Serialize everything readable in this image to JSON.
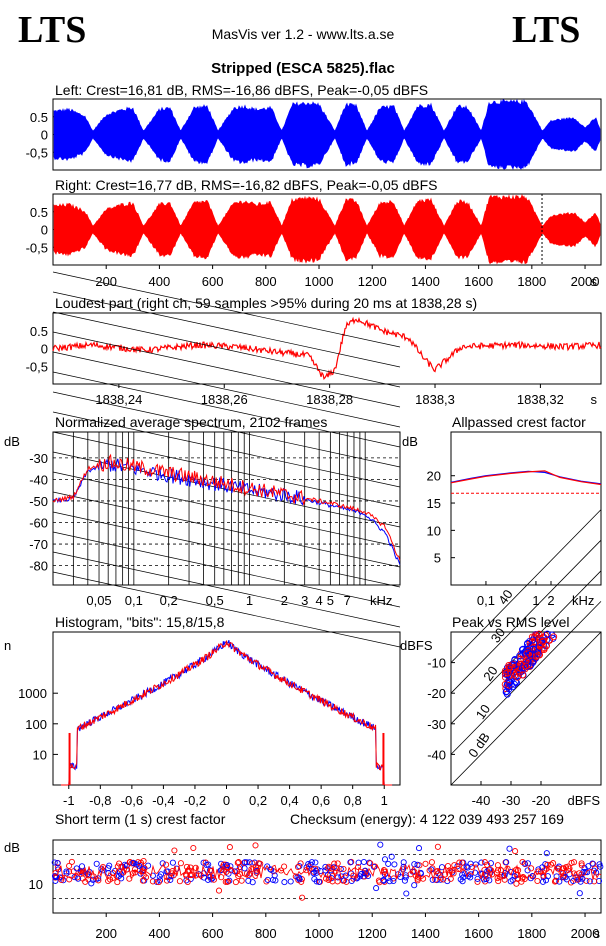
{
  "header": {
    "logo_left": "LTS",
    "logo_right": "LTS",
    "app_line": "MasVis ver 1.2 - www.lts.a.se",
    "file_title": "Stripped (ESCA 5825).flac"
  },
  "colors": {
    "left": "#0000ff",
    "right": "#ff0000",
    "grid": "#000000"
  },
  "chart_data": [
    {
      "id": "left",
      "type": "area",
      "title": "Left: Crest=16,81 dB, RMS=-16,86 dBFS, Peak=-0,05 dBFS",
      "yticks": [
        "0.5",
        "0",
        "-0,5"
      ],
      "ylim": [
        -1,
        1
      ],
      "xlim": [
        0,
        2060
      ],
      "envelope_x": [
        0,
        60,
        120,
        150,
        200,
        260,
        300,
        340,
        400,
        440,
        480,
        530,
        580,
        620,
        680,
        720,
        760,
        820,
        860,
        900,
        960,
        1000,
        1060,
        1100,
        1140,
        1180,
        1230,
        1280,
        1320,
        1370,
        1420,
        1470,
        1520,
        1560,
        1610,
        1640,
        1700,
        1780,
        1840,
        1870,
        1900,
        1960,
        2000,
        2040,
        2060
      ],
      "envelope_amp": [
        0.7,
        0.75,
        0.55,
        0.1,
        0.6,
        0.75,
        0.8,
        0.1,
        0.75,
        0.8,
        0.1,
        0.8,
        0.85,
        0.1,
        0.8,
        0.85,
        0.75,
        0.8,
        0.1,
        0.9,
        0.95,
        0.9,
        0.1,
        0.9,
        0.85,
        0.1,
        0.8,
        0.85,
        0.1,
        0.85,
        0.9,
        0.1,
        0.85,
        0.8,
        0.1,
        0.98,
        0.98,
        0.98,
        0.1,
        0.4,
        0.45,
        0.5,
        0.2,
        0.5,
        0.1
      ]
    },
    {
      "id": "right",
      "type": "area",
      "title": "Right: Crest=16,77 dB, RMS=-16,82 dBFS, Peak=-0,05 dBFS",
      "yticks": [
        "0.5",
        "0",
        "-0,5"
      ],
      "ylim": [
        -1,
        1
      ],
      "xlim": [
        0,
        2060
      ],
      "xticks": [
        "200",
        "400",
        "600",
        "800",
        "1000",
        "1200",
        "1400",
        "1600",
        "1800",
        "2000"
      ],
      "xunit": "s",
      "envelope_x": [
        0,
        60,
        120,
        150,
        200,
        260,
        300,
        340,
        400,
        440,
        480,
        530,
        580,
        620,
        680,
        720,
        760,
        820,
        860,
        900,
        960,
        1000,
        1060,
        1100,
        1140,
        1180,
        1230,
        1280,
        1320,
        1370,
        1420,
        1470,
        1520,
        1560,
        1610,
        1640,
        1700,
        1780,
        1840,
        1870,
        1900,
        1960,
        2000,
        2040,
        2060
      ],
      "envelope_amp": [
        0.7,
        0.75,
        0.55,
        0.1,
        0.6,
        0.75,
        0.8,
        0.1,
        0.75,
        0.8,
        0.1,
        0.8,
        0.85,
        0.1,
        0.8,
        0.85,
        0.75,
        0.8,
        0.1,
        0.9,
        0.95,
        0.9,
        0.1,
        0.9,
        0.85,
        0.1,
        0.8,
        0.85,
        0.1,
        0.85,
        0.9,
        0.1,
        0.85,
        0.8,
        0.1,
        0.98,
        0.98,
        0.98,
        0.1,
        0.4,
        0.45,
        0.5,
        0.2,
        0.5,
        0.1
      ]
    },
    {
      "id": "loudest",
      "type": "line",
      "title": "Loudest part (right ch, 59 samples >95% during 20 ms at 1838,28 s)",
      "yticks": [
        "0.5",
        "0",
        "-0,5"
      ],
      "ylim": [
        -1,
        1
      ],
      "xlim": [
        1838.2275,
        1838.3315
      ],
      "xticks": [
        "1838,24",
        "1838,26",
        "1838,28",
        "1838,3",
        "1838,32"
      ],
      "xunit": "s",
      "x": [
        1838.2275,
        1838.235,
        1838.245,
        1838.255,
        1838.262,
        1838.27,
        1838.276,
        1838.279,
        1838.281,
        1838.283,
        1838.285,
        1838.29,
        1838.295,
        1838.298,
        1838.3,
        1838.305,
        1838.315,
        1838.325,
        1838.3315
      ],
      "y": [
        0.0,
        0.1,
        -0.05,
        0.1,
        0.05,
        -0.1,
        -0.2,
        -0.85,
        -0.6,
        0.6,
        0.85,
        0.5,
        0.3,
        -0.3,
        -0.6,
        0.05,
        0.1,
        0.05,
        0.1
      ]
    },
    {
      "id": "spectrum",
      "type": "line",
      "title": "Normalized average spectrum, 2102 frames",
      "yunit": "dB",
      "yticks": [
        "-30",
        "-40",
        "-50",
        "-60",
        "-70",
        "-80"
      ],
      "xticks": [
        "0,05",
        "0,1",
        "0,2",
        "0,5",
        "1",
        "2",
        "3",
        "4",
        "5",
        "7"
      ],
      "xunit": "kHz",
      "xscale": "log",
      "xlim": [
        0.02,
        20
      ],
      "ylim": [
        -89,
        -18
      ],
      "series": [
        {
          "color": "#0000ff",
          "x": [
            0.02,
            0.03,
            0.04,
            0.06,
            0.1,
            0.2,
            0.5,
            1,
            2,
            5,
            10,
            15,
            20
          ],
          "y": [
            -50,
            -49,
            -36,
            -33,
            -35,
            -38,
            -42,
            -45,
            -47,
            -52,
            -56,
            -65,
            -80
          ]
        },
        {
          "color": "#ff0000",
          "x": [
            0.02,
            0.03,
            0.04,
            0.06,
            0.1,
            0.2,
            0.5,
            1,
            2,
            5,
            10,
            15,
            20
          ],
          "y": [
            -50,
            -48,
            -35,
            -32,
            -34,
            -37,
            -41,
            -44,
            -47,
            -51,
            -55,
            -62,
            -78
          ]
        }
      ]
    },
    {
      "id": "crest",
      "type": "line",
      "title": "Allpassed crest factor",
      "yunit": "dB",
      "yticks": [
        "20",
        "15",
        "10",
        "5"
      ],
      "xticks": [
        "0,1",
        "1",
        "2",
        "kHz"
      ],
      "xscale": "log",
      "xlim": [
        0.02,
        20
      ],
      "ylim": [
        0,
        28
      ],
      "reference_db": 16.8,
      "series": [
        {
          "color": "#0000ff",
          "x": [
            0.02,
            0.05,
            0.1,
            0.3,
            0.7,
            1.5,
            3,
            8,
            20
          ],
          "y": [
            18.8,
            19.5,
            20.0,
            20.5,
            20.8,
            20.6,
            19.8,
            19.0,
            18.5
          ]
        },
        {
          "color": "#ff0000",
          "x": [
            0.02,
            0.05,
            0.1,
            0.3,
            0.7,
            1.5,
            3,
            8,
            20
          ],
          "y": [
            18.7,
            19.4,
            19.9,
            20.4,
            20.7,
            20.9,
            19.7,
            18.9,
            18.4
          ]
        }
      ]
    },
    {
      "id": "histogram",
      "type": "line",
      "title": "Histogram, \"bits\": 15,8/15,8",
      "yunit": "n",
      "yticks": [
        "1000",
        "100",
        "10"
      ],
      "xticks": [
        "-1",
        "-0,8",
        "-0,6",
        "-0,4",
        "-0,2",
        "0",
        "0,2",
        "0,4",
        "0,6",
        "0,8",
        "1"
      ],
      "xlim": [
        -1.1,
        1.1
      ],
      "ylog_range": [
        0,
        5
      ]
    },
    {
      "id": "peakrms",
      "type": "scatter",
      "title": "Peak vs RMS level",
      "yunit": "dBFS",
      "xunit": "dBFS",
      "yticks": [
        "-10",
        "-20",
        "-30",
        "-40"
      ],
      "xticks": [
        "-40",
        "-30",
        "-20"
      ],
      "crest_labels": [
        "40",
        "30",
        "20",
        "10",
        "0 dB"
      ],
      "xlim": [
        -50,
        0
      ],
      "ylim": [
        -50,
        0
      ]
    },
    {
      "id": "shortcrest",
      "type": "scatter",
      "title": "Short term (1 s) crest factor",
      "checksum": "Checksum (energy):  4 122 039 493 257 169",
      "yunit": "dB",
      "yticks": [
        "10"
      ],
      "xticks": [
        "200",
        "400",
        "600",
        "800",
        "1000",
        "1200",
        "1400",
        "1600",
        "1800",
        "2000"
      ],
      "xunit": "s",
      "xlim": [
        0,
        2060
      ],
      "ylim": [
        0,
        25
      ]
    }
  ]
}
